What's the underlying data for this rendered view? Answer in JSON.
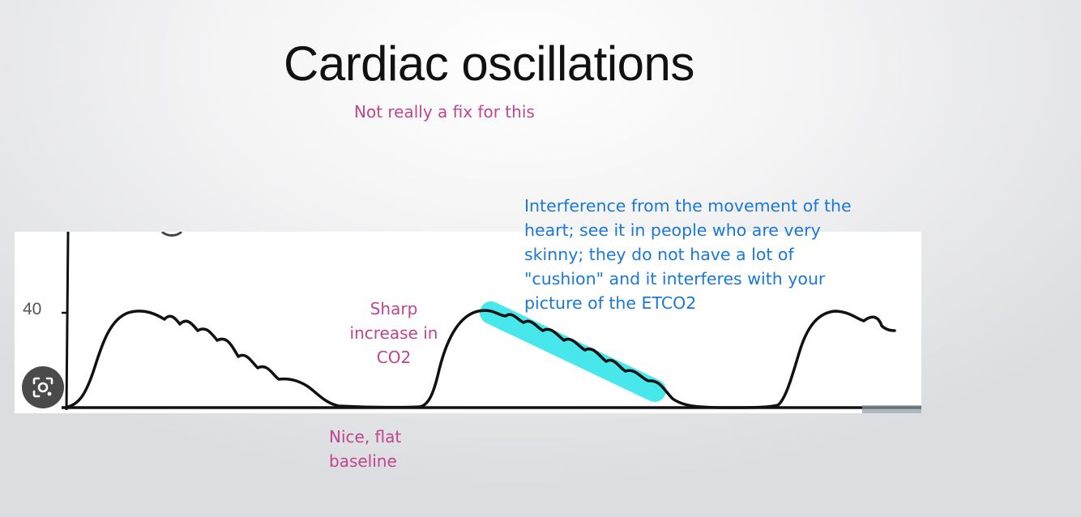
{
  "slide": {
    "title": "Cardiac oscillations",
    "subtitle": "Not really a fix for this"
  },
  "capnogram": {
    "y_tick_label": "40",
    "lens_icon": "google-lens-icon",
    "highlight_color": "#3fe6ec"
  },
  "annotations": {
    "sharp_increase": [
      "Sharp",
      "increase in",
      "CO2"
    ],
    "baseline": [
      "Nice, flat",
      "baseline"
    ],
    "interference": [
      "Interference from the movement of the",
      "heart; see it in people who are very",
      "skinny; they do not have a lot of",
      "\"cushion\" and it interferes with your",
      "picture of the ETCO2"
    ]
  },
  "colors": {
    "pink": "#c0458f",
    "blue": "#1a78d6"
  }
}
